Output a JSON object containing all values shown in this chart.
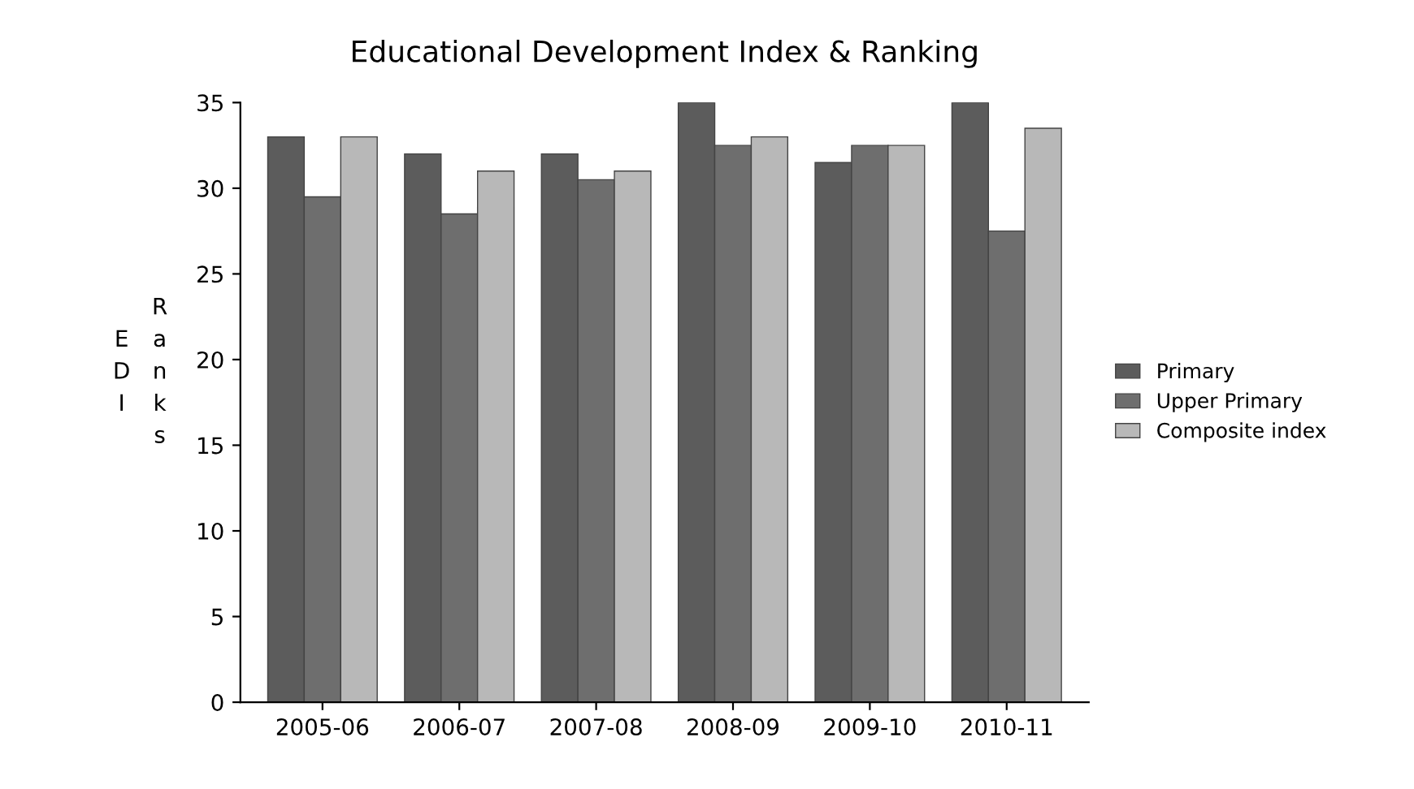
{
  "chart_data": {
    "type": "bar",
    "title": "Educational Development Index & Ranking",
    "ylabel": "EDI Ranks",
    "categories": [
      "2005-06",
      "2006-07",
      "2007-08",
      "2008-09",
      "2009-10",
      "2010-11"
    ],
    "series": [
      {
        "name": "Primary",
        "color": "#5c5c5c",
        "values": [
          33,
          32,
          32,
          35,
          31.5,
          35
        ]
      },
      {
        "name": "Upper Primary",
        "color": "#6e6e6e",
        "values": [
          29.5,
          28.5,
          30.5,
          32.5,
          32.5,
          27.5
        ]
      },
      {
        "name": "Composite index",
        "color": "#b8b8b8",
        "values": [
          33,
          31,
          31,
          33,
          32.5,
          33.5
        ]
      }
    ],
    "ylim": [
      0,
      35
    ],
    "yticks": [
      0,
      5,
      10,
      15,
      20,
      25,
      30,
      35
    ],
    "grid": false,
    "legend": "right"
  }
}
